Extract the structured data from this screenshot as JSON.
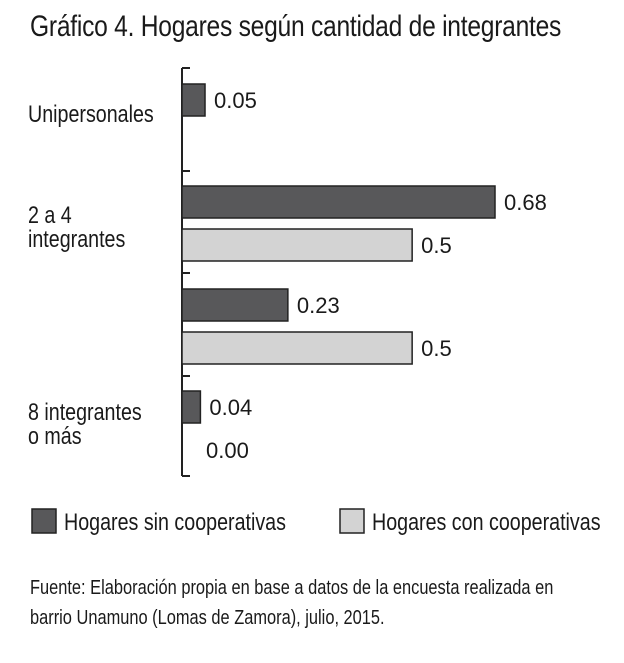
{
  "title": "Gráfico 4. Hogares según cantidad de integrantes",
  "source": {
    "line1": "Fuente: Elaboración propia en base a datos de la encuesta realizada en",
    "line2": "barrio Unamuno (Lomas de Zamora), julio, 2015."
  },
  "chart_data": {
    "type": "bar",
    "orientation": "horizontal",
    "categories": [
      {
        "lines": [
          "Unipersonales"
        ]
      },
      {
        "lines": [
          "2 a 4",
          "integrantes"
        ]
      },
      {
        "lines": []
      },
      {
        "lines": [
          "8 integrantes",
          "o más"
        ]
      }
    ],
    "series": [
      {
        "name": "Hogares sin cooperativas",
        "color": "#58585a",
        "values": [
          0.05,
          0.68,
          0.23,
          0.04
        ],
        "labels": [
          "0.05",
          "0.68",
          "0.23",
          "0.04"
        ]
      },
      {
        "name": "Hogares con cooperativas",
        "color": "#d3d3d3",
        "values": [
          null,
          0.5,
          0.5,
          0.0
        ],
        "labels": [
          null,
          "0.5",
          "0.5",
          "0.00"
        ]
      }
    ],
    "xlim": [
      0,
      0.68
    ],
    "grid": false,
    "legend_position": "bottom"
  }
}
